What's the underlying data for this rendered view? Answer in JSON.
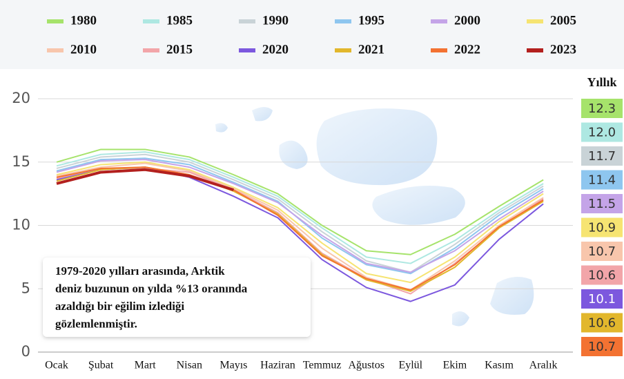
{
  "chart_data": {
    "type": "line",
    "categories": [
      "Ocak",
      "Şubat",
      "Mart",
      "Nisan",
      "Mayıs",
      "Haziran",
      "Temmuz",
      "Ağustos",
      "Eylül",
      "Ekim",
      "Kasım",
      "Aralık"
    ],
    "ylim": [
      0,
      21
    ],
    "yticks": [
      0,
      5,
      10,
      15,
      20
    ],
    "grid": true,
    "annual_heading": "Yıllık",
    "annotation": [
      "1979-2020 yılları arasında, Arktik",
      "deniz buzunun on yılda %13 oranında",
      "azaldığı bir eğilim izlediği",
      "gözlemlenmiştir."
    ],
    "series": [
      {
        "name": "1980",
        "color": "#a6e36b",
        "values": [
          15.0,
          16.0,
          16.0,
          15.4,
          14.0,
          12.5,
          10.0,
          8.0,
          7.7,
          9.3,
          11.5,
          13.6
        ],
        "annual": 12.3
      },
      {
        "name": "1985",
        "color": "#aee8e2",
        "values": [
          14.7,
          15.6,
          15.8,
          15.2,
          13.8,
          12.3,
          9.8,
          7.5,
          7.0,
          8.8,
          11.2,
          13.3
        ],
        "annual": 12,
        "annual_label": "12.0"
      },
      {
        "name": "1990",
        "color": "#c9d3d7",
        "values": [
          14.5,
          15.4,
          15.6,
          15.0,
          13.6,
          12.1,
          9.5,
          7.2,
          6.3,
          8.5,
          11.0,
          13.1
        ],
        "annual": 11.7
      },
      {
        "name": "1995",
        "color": "#8ec6ef",
        "values": [
          14.3,
          15.2,
          15.3,
          14.8,
          13.4,
          11.9,
          9.0,
          6.9,
          6.2,
          8.2,
          10.8,
          12.9
        ],
        "annual": 11.4
      },
      {
        "name": "2000",
        "color": "#c4a4e8",
        "values": [
          14.2,
          15.1,
          15.2,
          14.6,
          13.3,
          11.8,
          9.2,
          7.0,
          6.3,
          8.0,
          10.5,
          12.7
        ],
        "annual": 11.5
      },
      {
        "name": "2005",
        "color": "#f6e472",
        "values": [
          14.0,
          14.8,
          15.0,
          14.4,
          13.0,
          11.4,
          8.6,
          6.2,
          5.5,
          7.5,
          10.3,
          12.5
        ],
        "annual": 10.9
      },
      {
        "name": "2010",
        "color": "#f8c6ac",
        "values": [
          13.9,
          14.6,
          14.9,
          14.3,
          12.9,
          11.2,
          8.2,
          5.9,
          4.9,
          7.2,
          10.0,
          12.2
        ],
        "annual": 10.7
      },
      {
        "name": "2015",
        "color": "#f2a5a9",
        "values": [
          13.7,
          14.5,
          14.5,
          14.2,
          12.8,
          11.0,
          7.8,
          5.8,
          4.6,
          7.0,
          9.8,
          12.1
        ],
        "annual": 10.6
      },
      {
        "name": "2020",
        "color": "#7c58de",
        "values": [
          13.6,
          14.4,
          14.6,
          13.8,
          12.3,
          10.6,
          7.3,
          5.1,
          4.0,
          5.3,
          8.9,
          11.7
        ],
        "annual": 10.1
      },
      {
        "name": "2021",
        "color": "#e2b72c",
        "values": [
          13.5,
          14.4,
          14.6,
          14.0,
          12.7,
          10.9,
          7.7,
          5.7,
          4.8,
          6.7,
          9.8,
          11.9
        ],
        "annual": 10.6
      },
      {
        "name": "2022",
        "color": "#f37232",
        "values": [
          13.8,
          14.5,
          14.6,
          14.0,
          12.8,
          10.8,
          7.6,
          5.8,
          4.9,
          6.9,
          9.9,
          12.0
        ],
        "annual": 10.7
      },
      {
        "name": "2023",
        "color": "#b3201e",
        "values": [
          13.3,
          14.2,
          14.4,
          13.9,
          12.8,
          null,
          null,
          null,
          null,
          null,
          null,
          null
        ]
      }
    ]
  }
}
